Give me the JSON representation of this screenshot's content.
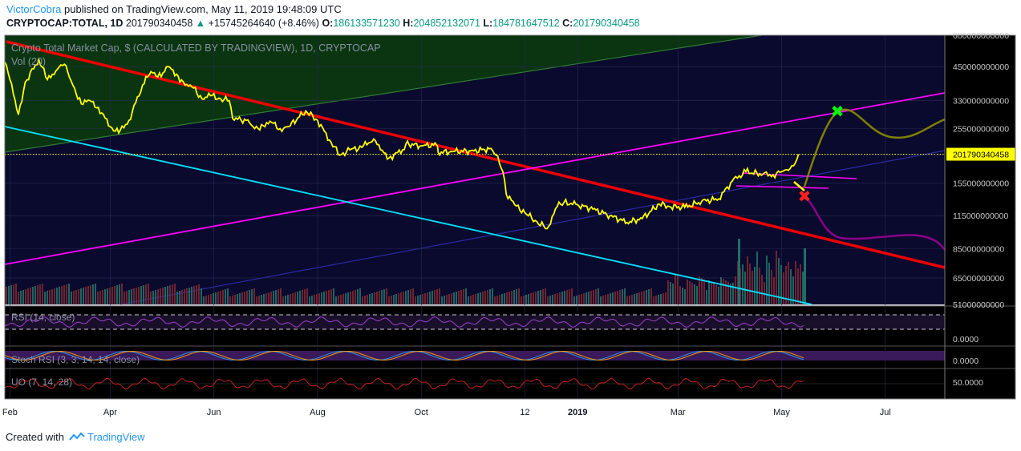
{
  "header": {
    "author": "VictorCobra",
    "published_text": "published on TradingView.com, May 11, 2019 19:48:09 UTC",
    "symbol": "CRYPTOCAP:TOTAL, 1D",
    "last_value": "201790340458",
    "change_text": "+15745264640 (+8.46%)",
    "o_label": "O:",
    "o_value": "186133571230",
    "h_label": "H:",
    "h_value": "204852132071",
    "l_label": "L:",
    "l_value": "184781647512",
    "c_label": "C:",
    "c_value": "201790340458"
  },
  "footer": {
    "created_with": "Created with",
    "brand": "TradingView"
  },
  "colors": {
    "price": "#ffff00",
    "downtrend": "#ff0000",
    "channel_top": "#ff00ff",
    "support": "#00e5ff",
    "green_channel": "#2e7d32",
    "bull_path": "#808000",
    "bear_path": "#8b008b",
    "bull_marker": "#00ff00",
    "bear_marker": "#ff2020",
    "price_tag": "#ffff00"
  },
  "chart_data": {
    "type": "line",
    "title": "Crypto Total Market Cap, $ (CALCULATED BY TRADINGVIEW), 1D, CRYPTOCAP",
    "volume_label": "Vol (20)",
    "log_scale": true,
    "ylim": [
      51000000000,
      600000000000
    ],
    "y_ticks": [
      "600000000000",
      "450000000000",
      "330000000000",
      "255000000000",
      "200000000000",
      "155000000000",
      "115000000000",
      "85000000000",
      "65000000000",
      "51000000000"
    ],
    "y_tick_values": [
      600000000000,
      450000000000,
      330000000000,
      255000000000,
      200000000000,
      155000000000,
      115000000000,
      85000000000,
      65000000000,
      51000000000
    ],
    "last_price_label": "201790340458",
    "last_price": 201790340458,
    "x_ticks": [
      "Feb",
      "Apr",
      "Jun",
      "Aug",
      "Oct",
      "12",
      "2019",
      "Mar",
      "May",
      "Jul"
    ],
    "x_tick_dates": [
      "2018-02-01",
      "2018-04-01",
      "2018-06-01",
      "2018-08-01",
      "2018-10-01",
      "2018-12-01",
      "2019-01-01",
      "2019-03-01",
      "2019-05-01",
      "2019-07-01"
    ],
    "x_range": [
      "2018-01-29",
      "2019-08-05"
    ],
    "series": [
      {
        "points": [
          [
            "2018-01-29",
            470000000000
          ],
          [
            "2018-02-01",
            400000000000
          ],
          [
            "2018-02-06",
            290000000000
          ],
          [
            "2018-02-10",
            390000000000
          ],
          [
            "2018-02-18",
            480000000000
          ],
          [
            "2018-02-23",
            400000000000
          ],
          [
            "2018-03-01",
            440000000000
          ],
          [
            "2018-03-05",
            460000000000
          ],
          [
            "2018-03-10",
            380000000000
          ],
          [
            "2018-03-15",
            320000000000
          ],
          [
            "2018-03-20",
            330000000000
          ],
          [
            "2018-03-25",
            310000000000
          ],
          [
            "2018-04-01",
            260000000000
          ],
          [
            "2018-04-06",
            245000000000
          ],
          [
            "2018-04-12",
            275000000000
          ],
          [
            "2018-04-20",
            380000000000
          ],
          [
            "2018-04-25",
            430000000000
          ],
          [
            "2018-05-01",
            410000000000
          ],
          [
            "2018-05-05",
            450000000000
          ],
          [
            "2018-05-10",
            420000000000
          ],
          [
            "2018-05-15",
            380000000000
          ],
          [
            "2018-05-20",
            370000000000
          ],
          [
            "2018-05-25",
            335000000000
          ],
          [
            "2018-05-30",
            345000000000
          ],
          [
            "2018-06-05",
            335000000000
          ],
          [
            "2018-06-10",
            330000000000
          ],
          [
            "2018-06-12",
            280000000000
          ],
          [
            "2018-06-20",
            275000000000
          ],
          [
            "2018-06-25",
            255000000000
          ],
          [
            "2018-06-30",
            262000000000
          ],
          [
            "2018-07-05",
            270000000000
          ],
          [
            "2018-07-10",
            255000000000
          ],
          [
            "2018-07-15",
            260000000000
          ],
          [
            "2018-07-25",
            300000000000
          ],
          [
            "2018-08-01",
            275000000000
          ],
          [
            "2018-08-08",
            230000000000
          ],
          [
            "2018-08-14",
            200000000000
          ],
          [
            "2018-08-20",
            210000000000
          ],
          [
            "2018-08-27",
            215000000000
          ],
          [
            "2018-09-03",
            232000000000
          ],
          [
            "2018-09-07",
            210000000000
          ],
          [
            "2018-09-12",
            195000000000
          ],
          [
            "2018-09-20",
            210000000000
          ],
          [
            "2018-09-22",
            222000000000
          ],
          [
            "2018-10-01",
            218000000000
          ],
          [
            "2018-10-10",
            220000000000
          ],
          [
            "2018-10-11",
            205000000000
          ],
          [
            "2018-10-20",
            207000000000
          ],
          [
            "2018-11-01",
            208000000000
          ],
          [
            "2018-11-10",
            212000000000
          ],
          [
            "2018-11-14",
            200000000000
          ],
          [
            "2018-11-18",
            172000000000
          ],
          [
            "2018-11-20",
            140000000000
          ],
          [
            "2018-11-25",
            127000000000
          ],
          [
            "2018-12-01",
            118000000000
          ],
          [
            "2018-12-07",
            110000000000
          ],
          [
            "2018-12-14",
            102000000000
          ],
          [
            "2018-12-20",
            125000000000
          ],
          [
            "2018-12-24",
            130000000000
          ],
          [
            "2019-01-01",
            127000000000
          ],
          [
            "2019-01-10",
            122000000000
          ],
          [
            "2019-01-20",
            115000000000
          ],
          [
            "2019-01-30",
            108000000000
          ],
          [
            "2019-02-08",
            112000000000
          ],
          [
            "2019-02-18",
            128000000000
          ],
          [
            "2019-02-24",
            125000000000
          ],
          [
            "2019-03-05",
            124000000000
          ],
          [
            "2019-03-15",
            131000000000
          ],
          [
            "2019-03-25",
            134000000000
          ],
          [
            "2019-04-02",
            158000000000
          ],
          [
            "2019-04-10",
            172000000000
          ],
          [
            "2019-04-20",
            168000000000
          ],
          [
            "2019-04-26",
            167000000000
          ],
          [
            "2019-05-01",
            172000000000
          ],
          [
            "2019-05-05",
            174000000000
          ],
          [
            "2019-05-09",
            186000000000
          ],
          [
            "2019-05-11",
            201790340458
          ]
        ]
      }
    ],
    "indicators": [
      {
        "name": "RSI (14, close)",
        "tick": "0.0000"
      },
      {
        "name": "Stoch RSI (3, 3, 14, 14, close)",
        "tick": "0.0000"
      },
      {
        "name": "UO (7, 14, 28)",
        "tick": "50.0000"
      }
    ]
  }
}
